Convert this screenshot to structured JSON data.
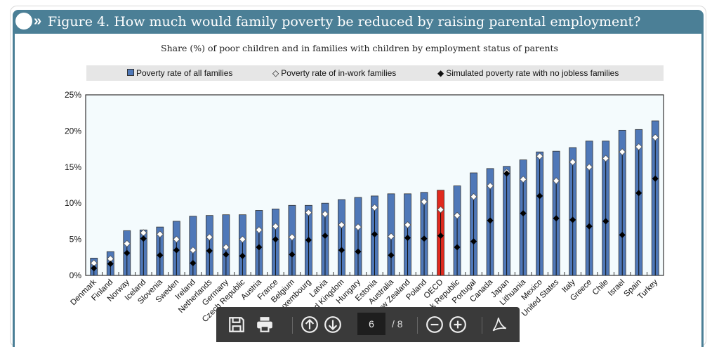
{
  "figure": {
    "title": "Figure 4. How much would family poverty be reduced by raising parental employment?",
    "subtitle": "Share (%) of poor children and in families with children by employment status of parents"
  },
  "chart_data": {
    "type": "bar",
    "title": "Share (%) of poor children and in families with children by employment status of parents",
    "ylim": [
      0,
      25
    ],
    "yticks": [
      "0%",
      "5%",
      "10%",
      "15%",
      "20%",
      "25%"
    ],
    "ytick_values": [
      0,
      5,
      10,
      15,
      20,
      25
    ],
    "grid": false,
    "legend_position": "top",
    "categories": [
      "Denmark",
      "Finland",
      "Norway",
      "Iceland",
      "Slovenia",
      "Sweden",
      "Ireland",
      "Netherlands",
      "Germany",
      "Czech Republic",
      "Austria",
      "France",
      "Belgium",
      "Luxembourg",
      "Latvia",
      "United Kingdom",
      "Hungary",
      "Estonia",
      "Australia",
      "New Zealand",
      "Poland",
      "OECD",
      "Slovak Republic",
      "Portugal",
      "Canada",
      "Japan",
      "Lithuania",
      "Mexico",
      "United States",
      "Italy",
      "Greece",
      "Chile",
      "Israel",
      "Spain",
      "Turkey"
    ],
    "highlight_category": "OECD",
    "series": [
      {
        "name": "Poverty rate of all families",
        "type": "bar",
        "color": "#4f78b8",
        "values": [
          2.4,
          3.3,
          6.2,
          6.3,
          6.7,
          7.5,
          8.2,
          8.3,
          8.4,
          8.4,
          9.0,
          9.2,
          9.7,
          9.7,
          10.0,
          10.5,
          10.8,
          11.0,
          11.3,
          11.3,
          11.5,
          11.8,
          12.4,
          14.2,
          14.8,
          15.1,
          16.0,
          17.1,
          17.2,
          17.7,
          18.6,
          18.6,
          20.1,
          20.2,
          21.4
        ]
      },
      {
        "name": "Poverty rate of in-work families",
        "type": "marker",
        "marker": "white-diamond",
        "values": [
          1.7,
          2.3,
          4.4,
          5.9,
          5.7,
          5.0,
          3.5,
          5.3,
          3.9,
          5.0,
          6.3,
          6.8,
          5.3,
          8.7,
          8.5,
          7.0,
          6.7,
          9.4,
          5.4,
          7.0,
          10.2,
          9.1,
          8.3,
          10.9,
          12.4,
          14.3,
          13.3,
          16.5,
          13.1,
          15.7,
          15.0,
          16.2,
          17.1,
          17.8,
          19.1
        ]
      },
      {
        "name": "Simulated poverty rate with no jobless families",
        "type": "marker",
        "marker": "black-diamond",
        "values": [
          1.0,
          1.6,
          3.1,
          5.1,
          2.8,
          3.5,
          1.7,
          3.4,
          2.9,
          2.7,
          3.9,
          5.0,
          2.9,
          4.9,
          5.5,
          3.5,
          3.3,
          5.7,
          2.8,
          5.2,
          5.1,
          5.5,
          3.9,
          4.7,
          7.6,
          14.1,
          8.6,
          11.0,
          7.9,
          7.7,
          6.8,
          7.5,
          5.6,
          11.4,
          13.4
        ]
      }
    ],
    "colors": {
      "bar": "#4f78b8",
      "highlight": "#e02a1f",
      "plot_bg": "#f4fbfd"
    }
  },
  "toolbar": {
    "current_page": "6",
    "total_pages": "/ 8"
  }
}
